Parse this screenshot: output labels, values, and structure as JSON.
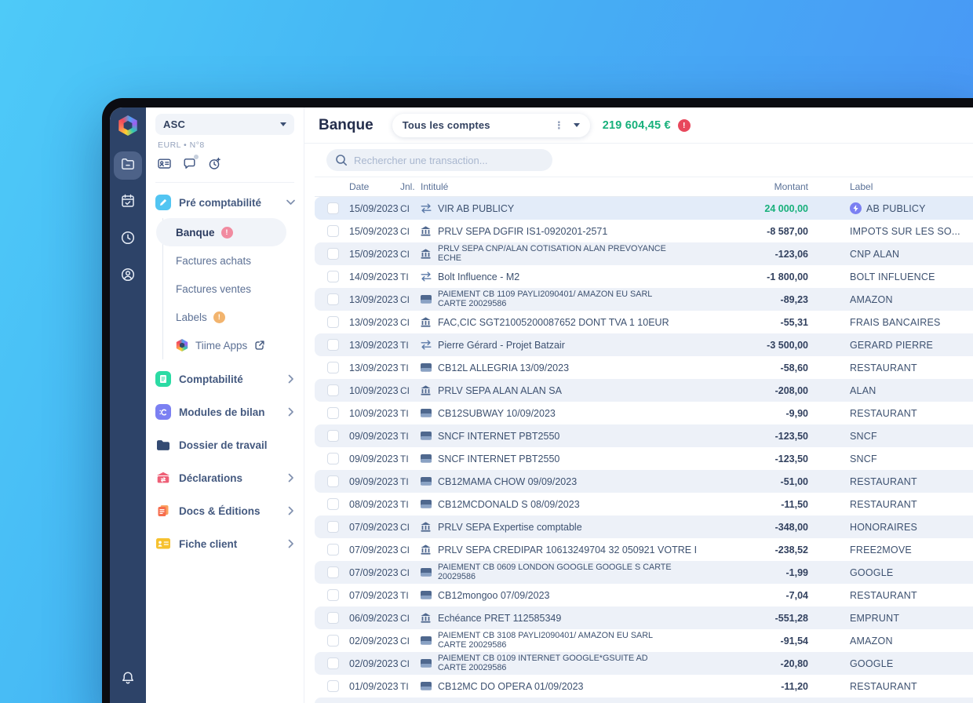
{
  "colors": {
    "rail_navy": "#2d4368",
    "balance_green": "#17b07b",
    "alert_red": "#e8485c",
    "banque_badge_pink": "#f18ba0",
    "labels_badge_orange": "#f2b46e",
    "label_icon_purple": "#7b80f2",
    "accent_cyan": "#52c5f2"
  },
  "rail": {
    "items": [
      {
        "icon": "folder-icon",
        "selected": true
      },
      {
        "icon": "calendar-check-icon",
        "selected": false
      },
      {
        "icon": "clock-icon",
        "selected": false
      },
      {
        "icon": "user-circle-icon",
        "selected": false
      }
    ],
    "bottom_icon": "bell-icon"
  },
  "sidebar": {
    "company_selector": {
      "name": "ASC"
    },
    "company_subtitle": "EURL • N°8",
    "quick_icons": [
      "id-card-icon",
      "chat-icon",
      "history-add-icon"
    ],
    "pre_compta": {
      "label": "Pré comptabilité",
      "expanded": true
    },
    "sub_items": [
      {
        "label": "Banque",
        "badge": "!",
        "active": true
      },
      {
        "label": "Factures achats"
      },
      {
        "label": "Factures ventes"
      },
      {
        "label": "Labels",
        "badge": "!"
      },
      {
        "label": "Tiime Apps",
        "external": true
      }
    ],
    "items": [
      {
        "label": "Comptabilité",
        "chevron": true
      },
      {
        "label": "Modules de bilan",
        "chevron": true
      },
      {
        "label": "Dossier de travail",
        "chevron": false
      },
      {
        "label": "Déclarations",
        "chevron": true
      },
      {
        "label": "Docs & Éditions",
        "chevron": true
      },
      {
        "label": "Fiche client",
        "chevron": true
      }
    ]
  },
  "header": {
    "title": "Banque",
    "account_filter": "Tous les comptes",
    "balance": "219 604,45 €",
    "balance_alert": "!"
  },
  "search": {
    "placeholder": "Rechercher une transaction..."
  },
  "table": {
    "columns": {
      "date": "Date",
      "journal": "Jnl.",
      "title": "Intitulé",
      "amount": "Montant",
      "label": "Label"
    },
    "rows": [
      {
        "date": "15/09/2023",
        "jnl": "CI",
        "icon": "transfer",
        "title": "VIR AB PUBLICY",
        "amount": "24 000,00",
        "positive": true,
        "label": "AB PUBLICY",
        "label_icon": true,
        "selected": true
      },
      {
        "date": "15/09/2023",
        "jnl": "CI",
        "icon": "bank",
        "title": "PRLV SEPA DGFIR IS1-0920201-2571",
        "amount": "-8 587,00",
        "label": "IMPOTS SUR LES SO..."
      },
      {
        "date": "15/09/2023",
        "jnl": "CI",
        "icon": "bank",
        "title": "PRLV SEPA CNP/ALAN COTISATION ALAN PREVOYANCE\nECHE",
        "amount": "-123,06",
        "label": "CNP ALAN"
      },
      {
        "date": "14/09/2023",
        "jnl": "TI",
        "icon": "transfer",
        "title": "Bolt Influence - M2",
        "amount": "-1 800,00",
        "label": "BOLT INFLUENCE"
      },
      {
        "date": "13/09/2023",
        "jnl": "CI",
        "icon": "card",
        "title": "PAIEMENT CB 1109 PAYLI2090401/ AMAZON EU SARL\nCARTE 20029586",
        "amount": "-89,23",
        "label": "AMAZON"
      },
      {
        "date": "13/09/2023",
        "jnl": "CI",
        "icon": "bank",
        "title": "FAC,CIC SGT21005200087652 DONT TVA 1 10EUR",
        "amount": "-55,31",
        "label": "FRAIS BANCAIRES"
      },
      {
        "date": "13/09/2023",
        "jnl": "TI",
        "icon": "transfer",
        "title": "Pierre Gérard - Projet Batzair",
        "amount": "-3 500,00",
        "label": "GERARD PIERRE"
      },
      {
        "date": "13/09/2023",
        "jnl": "TI",
        "icon": "card",
        "title": "CB12L ALLEGRIA 13/09/2023",
        "amount": "-58,60",
        "label": "RESTAURANT"
      },
      {
        "date": "10/09/2023",
        "jnl": "CI",
        "icon": "bank",
        "title": "PRLV SEPA ALAN ALAN SA",
        "amount": "-208,00",
        "label": "ALAN"
      },
      {
        "date": "10/09/2023",
        "jnl": "TI",
        "icon": "card",
        "title": "CB12SUBWAY 10/09/2023",
        "amount": "-9,90",
        "label": "RESTAURANT"
      },
      {
        "date": "09/09/2023",
        "jnl": "TI",
        "icon": "card",
        "title": "SNCF INTERNET PBT2550",
        "amount": "-123,50",
        "label": "SNCF"
      },
      {
        "date": "09/09/2023",
        "jnl": "TI",
        "icon": "card",
        "title": "SNCF INTERNET PBT2550",
        "amount": "-123,50",
        "label": "SNCF"
      },
      {
        "date": "09/09/2023",
        "jnl": "TI",
        "icon": "card",
        "title": "CB12MAMA CHOW 09/09/2023",
        "amount": "-51,00",
        "label": "RESTAURANT"
      },
      {
        "date": "08/09/2023",
        "jnl": "TI",
        "icon": "card",
        "title": "CB12MCDONALD S 08/09/2023",
        "amount": "-11,50",
        "label": "RESTAURANT"
      },
      {
        "date": "07/09/2023",
        "jnl": "CI",
        "icon": "bank",
        "title": "PRLV SEPA Expertise comptable",
        "amount": "-348,00",
        "label": "HONORAIRES"
      },
      {
        "date": "07/09/2023",
        "jnl": "CI",
        "icon": "bank",
        "title": "PRLV SEPA CREDIPAR 10613249704 32 050921 VOTRE I",
        "amount": "-238,52",
        "label": "FREE2MOVE"
      },
      {
        "date": "07/09/2023",
        "jnl": "CI",
        "icon": "card",
        "title": "PAIEMENT CB 0609 LONDON GOOGLE GOOGLE S CARTE\n20029586",
        "amount": "-1,99",
        "label": "GOOGLE"
      },
      {
        "date": "07/09/2023",
        "jnl": "TI",
        "icon": "card",
        "title": "CB12mongoo 07/09/2023",
        "amount": "-7,04",
        "label": "RESTAURANT"
      },
      {
        "date": "06/09/2023",
        "jnl": "CI",
        "icon": "bank",
        "title": "Echéance PRET 112585349",
        "amount": "-551,28",
        "label": "EMPRUNT"
      },
      {
        "date": "02/09/2023",
        "jnl": "CI",
        "icon": "card",
        "title": "PAIEMENT CB 3108 PAYLI2090401/ AMAZON EU SARL\nCARTE 20029586",
        "amount": "-91,54",
        "label": "AMAZON"
      },
      {
        "date": "02/09/2023",
        "jnl": "CI",
        "icon": "card",
        "title": "PAIEMENT CB 0109 INTERNET GOOGLE*GSUITE AD\nCARTE 20029586",
        "amount": "-20,80",
        "label": "GOOGLE"
      },
      {
        "date": "01/09/2023",
        "jnl": "TI",
        "icon": "card",
        "title": "CB12MC DO OPERA 01/09/2023",
        "amount": "-11,20",
        "label": "RESTAURANT"
      },
      {
        "date": "",
        "jnl": "",
        "icon": "transfer",
        "title": "",
        "amount": "",
        "label": "",
        "cut_off": true
      }
    ]
  }
}
